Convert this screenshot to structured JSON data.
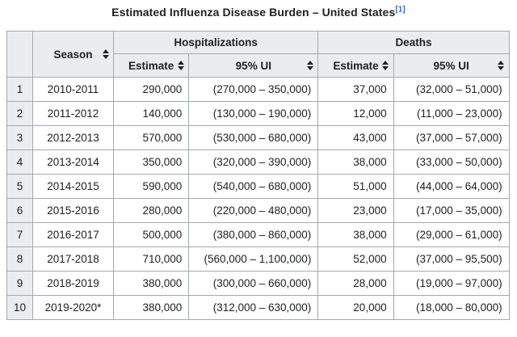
{
  "theme": {
    "body-bg": "#ffffff",
    "header-bg": "#eaecf0",
    "border-color": "#a2a9b1",
    "text-color": "#202122",
    "link-color": "#3366cc"
  },
  "title": {
    "text": "Estimated Influenza Disease Burden – United States",
    "ref": "[1]"
  },
  "table": {
    "corner_label": "",
    "season_label": "Season",
    "group_hospitalizations": "Hospitalizations",
    "group_deaths": "Deaths",
    "estimate_label": "Estimate",
    "ui_label": "95% UI",
    "rows": [
      {
        "num": "1",
        "season": "2010-2011",
        "hosp_estimate": "290,000",
        "hosp_ui": "(270,000 – 350,000)",
        "deaths_estimate": "37,000",
        "deaths_ui": "(32,000 – 51,000)"
      },
      {
        "num": "2",
        "season": "2011-2012",
        "hosp_estimate": "140,000",
        "hosp_ui": "(130,000 – 190,000)",
        "deaths_estimate": "12,000",
        "deaths_ui": "(11,000 – 23,000)"
      },
      {
        "num": "3",
        "season": "2012-2013",
        "hosp_estimate": "570,000",
        "hosp_ui": "(530,000 – 680,000)",
        "deaths_estimate": "43,000",
        "deaths_ui": "(37,000 – 57,000)"
      },
      {
        "num": "4",
        "season": "2013-2014",
        "hosp_estimate": "350,000",
        "hosp_ui": "(320,000 – 390,000)",
        "deaths_estimate": "38,000",
        "deaths_ui": "(33,000 – 50,000)"
      },
      {
        "num": "5",
        "season": "2014-2015",
        "hosp_estimate": "590,000",
        "hosp_ui": "(540,000 – 680,000)",
        "deaths_estimate": "51,000",
        "deaths_ui": "(44,000 – 64,000)"
      },
      {
        "num": "6",
        "season": "2015-2016",
        "hosp_estimate": "280,000",
        "hosp_ui": "(220,000 – 480,000)",
        "deaths_estimate": "23,000",
        "deaths_ui": "(17,000 – 35,000)"
      },
      {
        "num": "7",
        "season": "2016-2017",
        "hosp_estimate": "500,000",
        "hosp_ui": "(380,000 – 860,000)",
        "deaths_estimate": "38,000",
        "deaths_ui": "(29,000 – 61,000)"
      },
      {
        "num": "8",
        "season": "2017-2018",
        "hosp_estimate": "710,000",
        "hosp_ui": "(560,000 – 1,100,000)",
        "deaths_estimate": "52,000",
        "deaths_ui": "(37,000 – 95,500)"
      },
      {
        "num": "9",
        "season": "2018-2019",
        "hosp_estimate": "380,000",
        "hosp_ui": "(300,000 – 660,000)",
        "deaths_estimate": "28,000",
        "deaths_ui": "(19,000 – 97,000)"
      },
      {
        "num": "10",
        "season": "2019-2020*",
        "hosp_estimate": "380,000",
        "hosp_ui": "(312,000 – 630,000)",
        "deaths_estimate": "20,000",
        "deaths_ui": "(18,000 – 80,000)"
      }
    ]
  },
  "chart_data": {
    "type": "table",
    "title": "Estimated Influenza Disease Burden – United States",
    "columns": [
      "Season",
      "Hospitalizations Estimate",
      "Hospitalizations 95% UI low",
      "Hospitalizations 95% UI high",
      "Deaths Estimate",
      "Deaths 95% UI low",
      "Deaths 95% UI high"
    ],
    "rows": [
      [
        "2010-2011",
        290000,
        270000,
        350000,
        37000,
        32000,
        51000
      ],
      [
        "2011-2012",
        140000,
        130000,
        190000,
        12000,
        11000,
        23000
      ],
      [
        "2012-2013",
        570000,
        530000,
        680000,
        43000,
        37000,
        57000
      ],
      [
        "2013-2014",
        350000,
        320000,
        390000,
        38000,
        33000,
        50000
      ],
      [
        "2014-2015",
        590000,
        540000,
        680000,
        51000,
        44000,
        64000
      ],
      [
        "2015-2016",
        280000,
        220000,
        480000,
        23000,
        17000,
        35000
      ],
      [
        "2016-2017",
        500000,
        380000,
        860000,
        38000,
        29000,
        61000
      ],
      [
        "2017-2018",
        710000,
        560000,
        1100000,
        52000,
        37000,
        95500
      ],
      [
        "2018-2019",
        380000,
        300000,
        660000,
        28000,
        19000,
        97000
      ],
      [
        "2019-2020*",
        380000,
        312000,
        630000,
        20000,
        18000,
        80000
      ]
    ]
  }
}
